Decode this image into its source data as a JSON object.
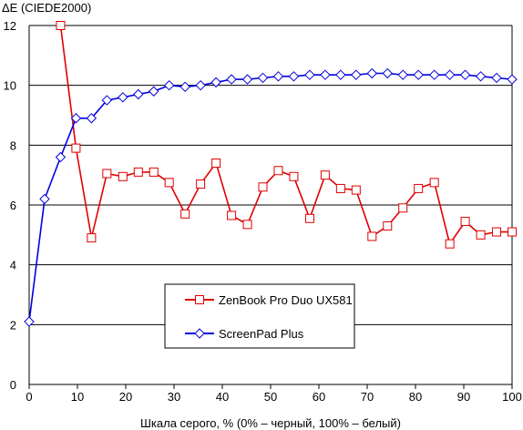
{
  "chart_data": {
    "type": "line",
    "title": "",
    "ylabel": "ΔE (CIEDE2000)",
    "xlabel": "Шкала серого, % (0% – черный, 100% – белый)",
    "xlim": [
      0,
      100
    ],
    "ylim": [
      0,
      12
    ],
    "xticks": [
      "0",
      "10",
      "20",
      "30",
      "40",
      "50",
      "60",
      "70",
      "80",
      "90",
      "100"
    ],
    "yticks": [
      "0",
      "2",
      "4",
      "6",
      "8",
      "10",
      "12"
    ],
    "grid": "horizontal",
    "legend_position": "lower-center",
    "series": [
      {
        "name": "ZenBook Pro Duo UX581",
        "color": "#e00000",
        "marker": "square",
        "x": [
          6.5,
          9.7,
          12.9,
          16.1,
          19.4,
          22.6,
          25.8,
          29.0,
          32.3,
          35.5,
          38.7,
          41.9,
          45.2,
          48.4,
          51.6,
          54.8,
          58.1,
          61.3,
          64.5,
          67.7,
          71.0,
          74.2,
          77.4,
          80.6,
          83.9,
          87.1,
          90.3,
          93.5,
          96.8,
          100
        ],
        "y": [
          12.0,
          7.9,
          4.9,
          7.05,
          6.95,
          7.1,
          7.1,
          6.75,
          5.7,
          6.7,
          7.4,
          5.65,
          5.35,
          6.6,
          7.15,
          6.95,
          5.55,
          7.0,
          6.55,
          6.5,
          4.95,
          5.3,
          5.9,
          6.55,
          6.75,
          4.7,
          5.45,
          5.0,
          5.1,
          5.1
        ]
      },
      {
        "name": "ScreenPad Plus",
        "color": "#0000e0",
        "marker": "diamond",
        "x": [
          0,
          3.2,
          6.5,
          9.7,
          12.9,
          16.1,
          19.4,
          22.6,
          25.8,
          29.0,
          32.3,
          35.5,
          38.7,
          41.9,
          45.2,
          48.4,
          51.6,
          54.8,
          58.1,
          61.3,
          64.5,
          67.7,
          71.0,
          74.2,
          77.4,
          80.6,
          83.9,
          87.1,
          90.3,
          93.5,
          96.8,
          100
        ],
        "y": [
          2.1,
          6.2,
          7.6,
          8.9,
          8.9,
          9.5,
          9.6,
          9.7,
          9.8,
          10.0,
          9.95,
          10.0,
          10.1,
          10.2,
          10.2,
          10.25,
          10.3,
          10.3,
          10.35,
          10.35,
          10.35,
          10.35,
          10.4,
          10.4,
          10.35,
          10.35,
          10.35,
          10.35,
          10.35,
          10.3,
          10.25,
          10.2
        ]
      }
    ]
  }
}
